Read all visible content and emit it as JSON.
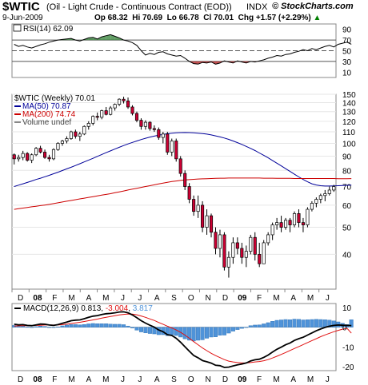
{
  "header": {
    "symbol": "$WTIC",
    "name": "(Oil - Light Crude - Continuous Contract (EOD))",
    "exchange": "INDX",
    "brand": "© StockCharts.com",
    "date": "9-Jun-2009",
    "open": "Op 68.32",
    "high": "Hi 70.69",
    "low": "Lo 66.78",
    "close": "Cl 70.01",
    "change": "Chg +1.57 (+2.29%)",
    "change_arrow": "▲"
  },
  "colors": {
    "up_candle": "#ffffff",
    "down_candle": "#cc0033",
    "ma50": "#000099",
    "ma200": "#cc0000",
    "macd": "#000000",
    "signal": "#e01010",
    "histogram": "#4f93d9",
    "rsi_fill": "#2e7d32",
    "rsi_fill_low": "#b71c1c"
  },
  "x_axis": {
    "labels": [
      "D",
      "08",
      "F",
      "M",
      "A",
      "M",
      "J",
      "J",
      "A",
      "S",
      "O",
      "N",
      "D",
      "09",
      "F",
      "M",
      "A",
      "M",
      "J"
    ],
    "bold": [
      "08",
      "09"
    ]
  },
  "chart_data": [
    {
      "type": "line",
      "title": "RSI(14) 62.09",
      "ylim": [
        0,
        100
      ],
      "yticks": [
        90,
        70,
        50,
        30,
        10
      ],
      "levels": [
        70,
        50,
        30
      ],
      "x": [
        0,
        1,
        2,
        3,
        4,
        5,
        6,
        7,
        8,
        9,
        10,
        11,
        12,
        13,
        14,
        15,
        16,
        17,
        18,
        19,
        20,
        21,
        22,
        23,
        24,
        25,
        26,
        27,
        28,
        29,
        30,
        31,
        32,
        33,
        34,
        35,
        36,
        37,
        38,
        39,
        40,
        41,
        42,
        43,
        44,
        45,
        46,
        47,
        48,
        49,
        50,
        51,
        52,
        53,
        54,
        55,
        56,
        57,
        58,
        59,
        60,
        61,
        62,
        63,
        64,
        65,
        66,
        67,
        68,
        69,
        70,
        71,
        72,
        73,
        74,
        75,
        76,
        77
      ],
      "values": [
        62,
        58,
        60,
        57,
        55,
        58,
        61,
        63,
        66,
        68,
        70,
        71,
        72,
        73,
        70,
        68,
        71,
        74,
        75,
        72,
        76,
        78,
        80,
        77,
        74,
        70,
        68,
        65,
        60,
        50,
        42,
        45,
        43,
        47,
        48,
        44,
        42,
        40,
        41,
        36,
        30,
        26,
        25,
        28,
        27,
        29,
        25,
        27,
        31,
        29,
        27,
        31,
        29,
        27,
        30,
        29,
        31,
        33,
        36,
        38,
        41,
        40,
        43,
        44,
        47,
        49,
        52,
        50,
        54,
        52,
        55,
        58,
        60,
        57,
        62,
        64,
        66,
        62.09
      ]
    },
    {
      "type": "candlestick",
      "title": "$WTIC (Weekly) 70.01",
      "y_scale": "log",
      "ylim": [
        30,
        150
      ],
      "yticks": [
        150,
        140,
        130,
        120,
        110,
        100,
        90,
        80,
        70,
        60,
        50,
        40
      ],
      "legend": [
        {
          "name": "MA(50) 70.87",
          "color": "#000099"
        },
        {
          "name": "MA(200) 74.74",
          "color": "#cc0000"
        },
        {
          "name": "Volume undef",
          "color": "#888888"
        }
      ],
      "ohlc": [
        [
          91,
          92,
          84,
          88
        ],
        [
          88,
          91,
          86,
          89
        ],
        [
          89,
          94,
          87,
          92
        ],
        [
          92,
          93,
          86,
          87
        ],
        [
          87,
          92,
          85,
          91
        ],
        [
          91,
          97,
          90,
          96
        ],
        [
          96,
          98,
          92,
          93
        ],
        [
          93,
          95,
          88,
          89
        ],
        [
          89,
          91,
          86,
          88
        ],
        [
          88,
          96,
          87,
          95
        ],
        [
          95,
          101,
          94,
          100
        ],
        [
          100,
          103,
          98,
          102
        ],
        [
          102,
          106,
          100,
          104
        ],
        [
          104,
          111,
          103,
          110
        ],
        [
          110,
          112,
          104,
          106
        ],
        [
          106,
          110,
          102,
          108
        ],
        [
          108,
          116,
          107,
          115
        ],
        [
          115,
          120,
          112,
          118
        ],
        [
          118,
          126,
          116,
          125
        ],
        [
          125,
          129,
          121,
          124
        ],
        [
          124,
          132,
          122,
          131
        ],
        [
          131,
          135,
          126,
          127
        ],
        [
          127,
          136,
          126,
          134
        ],
        [
          134,
          139,
          131,
          138
        ],
        [
          138,
          145,
          136,
          144
        ],
        [
          144,
          147,
          139,
          142
        ],
        [
          142,
          146,
          133,
          135
        ],
        [
          135,
          137,
          126,
          128
        ],
        [
          128,
          130,
          119,
          121
        ],
        [
          121,
          123,
          112,
          115
        ],
        [
          115,
          121,
          112,
          119
        ],
        [
          119,
          120,
          111,
          113
        ],
        [
          113,
          116,
          110,
          112
        ],
        [
          112,
          114,
          103,
          105
        ],
        [
          105,
          110,
          100,
          108
        ],
        [
          108,
          110,
          91,
          93
        ],
        [
          93,
          104,
          90,
          102
        ],
        [
          102,
          104,
          86,
          88
        ],
        [
          88,
          90,
          76,
          78
        ],
        [
          78,
          80,
          68,
          70
        ],
        [
          70,
          72,
          61,
          63
        ],
        [
          63,
          65,
          55,
          57
        ],
        [
          57,
          65,
          54,
          60
        ],
        [
          60,
          62,
          48,
          50
        ],
        [
          50,
          58,
          47,
          55
        ],
        [
          55,
          56,
          46,
          48
        ],
        [
          48,
          50,
          40,
          42
        ],
        [
          42,
          49,
          39,
          47
        ],
        [
          47,
          48,
          35,
          36
        ],
        [
          36,
          41,
          33,
          39
        ],
        [
          39,
          46,
          37,
          44
        ],
        [
          44,
          46,
          40,
          42
        ],
        [
          42,
          44,
          37,
          39
        ],
        [
          39,
          43,
          36,
          41
        ],
        [
          41,
          47,
          40,
          46
        ],
        [
          46,
          48,
          38,
          40
        ],
        [
          40,
          44,
          36,
          37
        ],
        [
          37,
          45,
          37,
          44
        ],
        [
          44,
          48,
          43,
          47
        ],
        [
          47,
          52,
          45,
          51
        ],
        [
          51,
          54,
          49,
          52
        ],
        [
          52,
          55,
          48,
          50
        ],
        [
          50,
          54,
          49,
          53
        ],
        [
          53,
          54,
          48,
          51
        ],
        [
          51,
          57,
          50,
          56
        ],
        [
          56,
          58,
          50,
          52
        ],
        [
          52,
          54,
          48,
          51
        ],
        [
          51,
          59,
          50,
          58
        ],
        [
          58,
          62,
          57,
          61
        ],
        [
          61,
          64,
          59,
          63
        ],
        [
          63,
          66,
          61,
          65
        ],
        [
          65,
          68,
          62,
          66
        ],
        [
          66,
          70,
          65,
          68
        ],
        [
          68,
          71,
          67,
          70.01
        ]
      ],
      "series": [
        {
          "name": "MA(50)",
          "values": [
            70,
            70.8,
            71.6,
            72.4,
            73.3,
            74.2,
            75,
            75.9,
            76.8,
            77.8,
            78.8,
            79.9,
            81,
            82.1,
            83.3,
            84.5,
            85.8,
            87.1,
            88.4,
            89.8,
            91.2,
            92.6,
            94,
            95.4,
            96.8,
            98.2,
            99.5,
            100.8,
            102,
            103.2,
            104.3,
            105.3,
            106.2,
            107,
            107.7,
            108.3,
            108.8,
            109.1,
            109.3,
            109.4,
            109.3,
            109.1,
            108.8,
            108.4,
            107.9,
            107.2,
            106.4,
            105.5,
            104.5,
            103.3,
            102,
            100.6,
            99.1,
            97.5,
            95.9,
            94.2,
            92.4,
            90.6,
            88.7,
            86.8,
            84.9,
            83,
            81.1,
            79.3,
            77.5,
            75.8,
            74.2,
            72.8,
            71.6,
            70.9,
            70.5,
            70.3,
            70.3,
            70.4,
            70.5,
            70.6,
            70.7,
            70.87
          ]
        },
        {
          "name": "MA(200)",
          "values": [
            58,
            58.3,
            58.6,
            58.9,
            59.2,
            59.5,
            59.8,
            60.1,
            60.4,
            60.8,
            61.2,
            61.6,
            62,
            62.4,
            62.8,
            63.2,
            63.6,
            64,
            64.4,
            64.8,
            65.2,
            65.6,
            66,
            66.5,
            67,
            67.5,
            68,
            68.5,
            69,
            69.5,
            70,
            70.5,
            71,
            71.5,
            72,
            72.5,
            73,
            73.3,
            73.6,
            73.9,
            74.1,
            74.3,
            74.5,
            74.6,
            74.7,
            74.8,
            74.9,
            75,
            75,
            75.1,
            75.1,
            75.1,
            75.1,
            75.1,
            75.1,
            75.1,
            75.1,
            75,
            75,
            75,
            74.9,
            74.9,
            74.9,
            74.9,
            74.8,
            74.8,
            74.8,
            74.8,
            74.8,
            74.8,
            74.8,
            74.8,
            74.8,
            74.8,
            74.7,
            74.7,
            74.7,
            74.74
          ]
        }
      ]
    },
    {
      "type": "line",
      "title": "MACD(12,26,9) 0.813, -3.004, 3.817",
      "title_parts": [
        "MACD(12,26,9) 0.813, ",
        "-3.004",
        ", ",
        "3.817"
      ],
      "ylim": [
        -22,
        12
      ],
      "yticks": [
        10,
        0,
        -10,
        -20
      ],
      "series": [
        {
          "name": "MACD",
          "values": [
            1.5,
            1.2,
            1.3,
            0.9,
            0.8,
            1.2,
            1.6,
            1.5,
            1.1,
            0.9,
            1.3,
            2,
            2.6,
            3.3,
            3.6,
            3.7,
            4.3,
            5,
            5.6,
            5.9,
            6.4,
            6.8,
            7,
            7.3,
            7.7,
            7.8,
            7.3,
            6.2,
            4.8,
            3.3,
            2.1,
            1,
            0,
            -1.4,
            -2.3,
            -3.8,
            -4.2,
            -5.6,
            -7.6,
            -9.9,
            -12.2,
            -14.3,
            -15.5,
            -16.9,
            -17.5,
            -18.2,
            -19.3,
            -19.5,
            -20.4,
            -20.2,
            -19.6,
            -19.1,
            -18.7,
            -18.1,
            -17.1,
            -16.5,
            -16.2,
            -15.3,
            -14.1,
            -12.6,
            -11.2,
            -10.1,
            -8.9,
            -8,
            -6.7,
            -5.8,
            -5.1,
            -4,
            -2.9,
            -1.8,
            -0.9,
            -0.1,
            0.5,
            0.9,
            1.1,
            1,
            0.9,
            0.813
          ]
        },
        {
          "name": "Signal",
          "values": [
            0.6,
            0.7,
            0.8,
            0.8,
            0.8,
            0.9,
            1,
            1.1,
            1.1,
            1.1,
            1.1,
            1.3,
            1.5,
            1.9,
            2.2,
            2.5,
            2.9,
            3.3,
            3.7,
            4.1,
            4.6,
            5,
            5.4,
            5.8,
            6.2,
            6.5,
            6.7,
            6.6,
            6.3,
            5.7,
            5,
            4.2,
            3.4,
            2.4,
            1.5,
            0.5,
            -0.4,
            -1.4,
            -2.6,
            -4,
            -5.6,
            -7.3,
            -8.9,
            -10.5,
            -11.9,
            -13.2,
            -14.4,
            -15.4,
            -16.4,
            -17.2,
            -17.6,
            -17.9,
            -18.1,
            -18.1,
            -17.9,
            -17.6,
            -17.4,
            -17,
            -16.4,
            -15.6,
            -14.7,
            -13.8,
            -12.8,
            -11.8,
            -10.8,
            -9.8,
            -8.8,
            -7.8,
            -6.8,
            -5.8,
            -4.8,
            -3.9,
            -3.1,
            -2.3,
            -1.6,
            -1,
            -0.5,
            -3.004
          ]
        }
      ]
    }
  ]
}
